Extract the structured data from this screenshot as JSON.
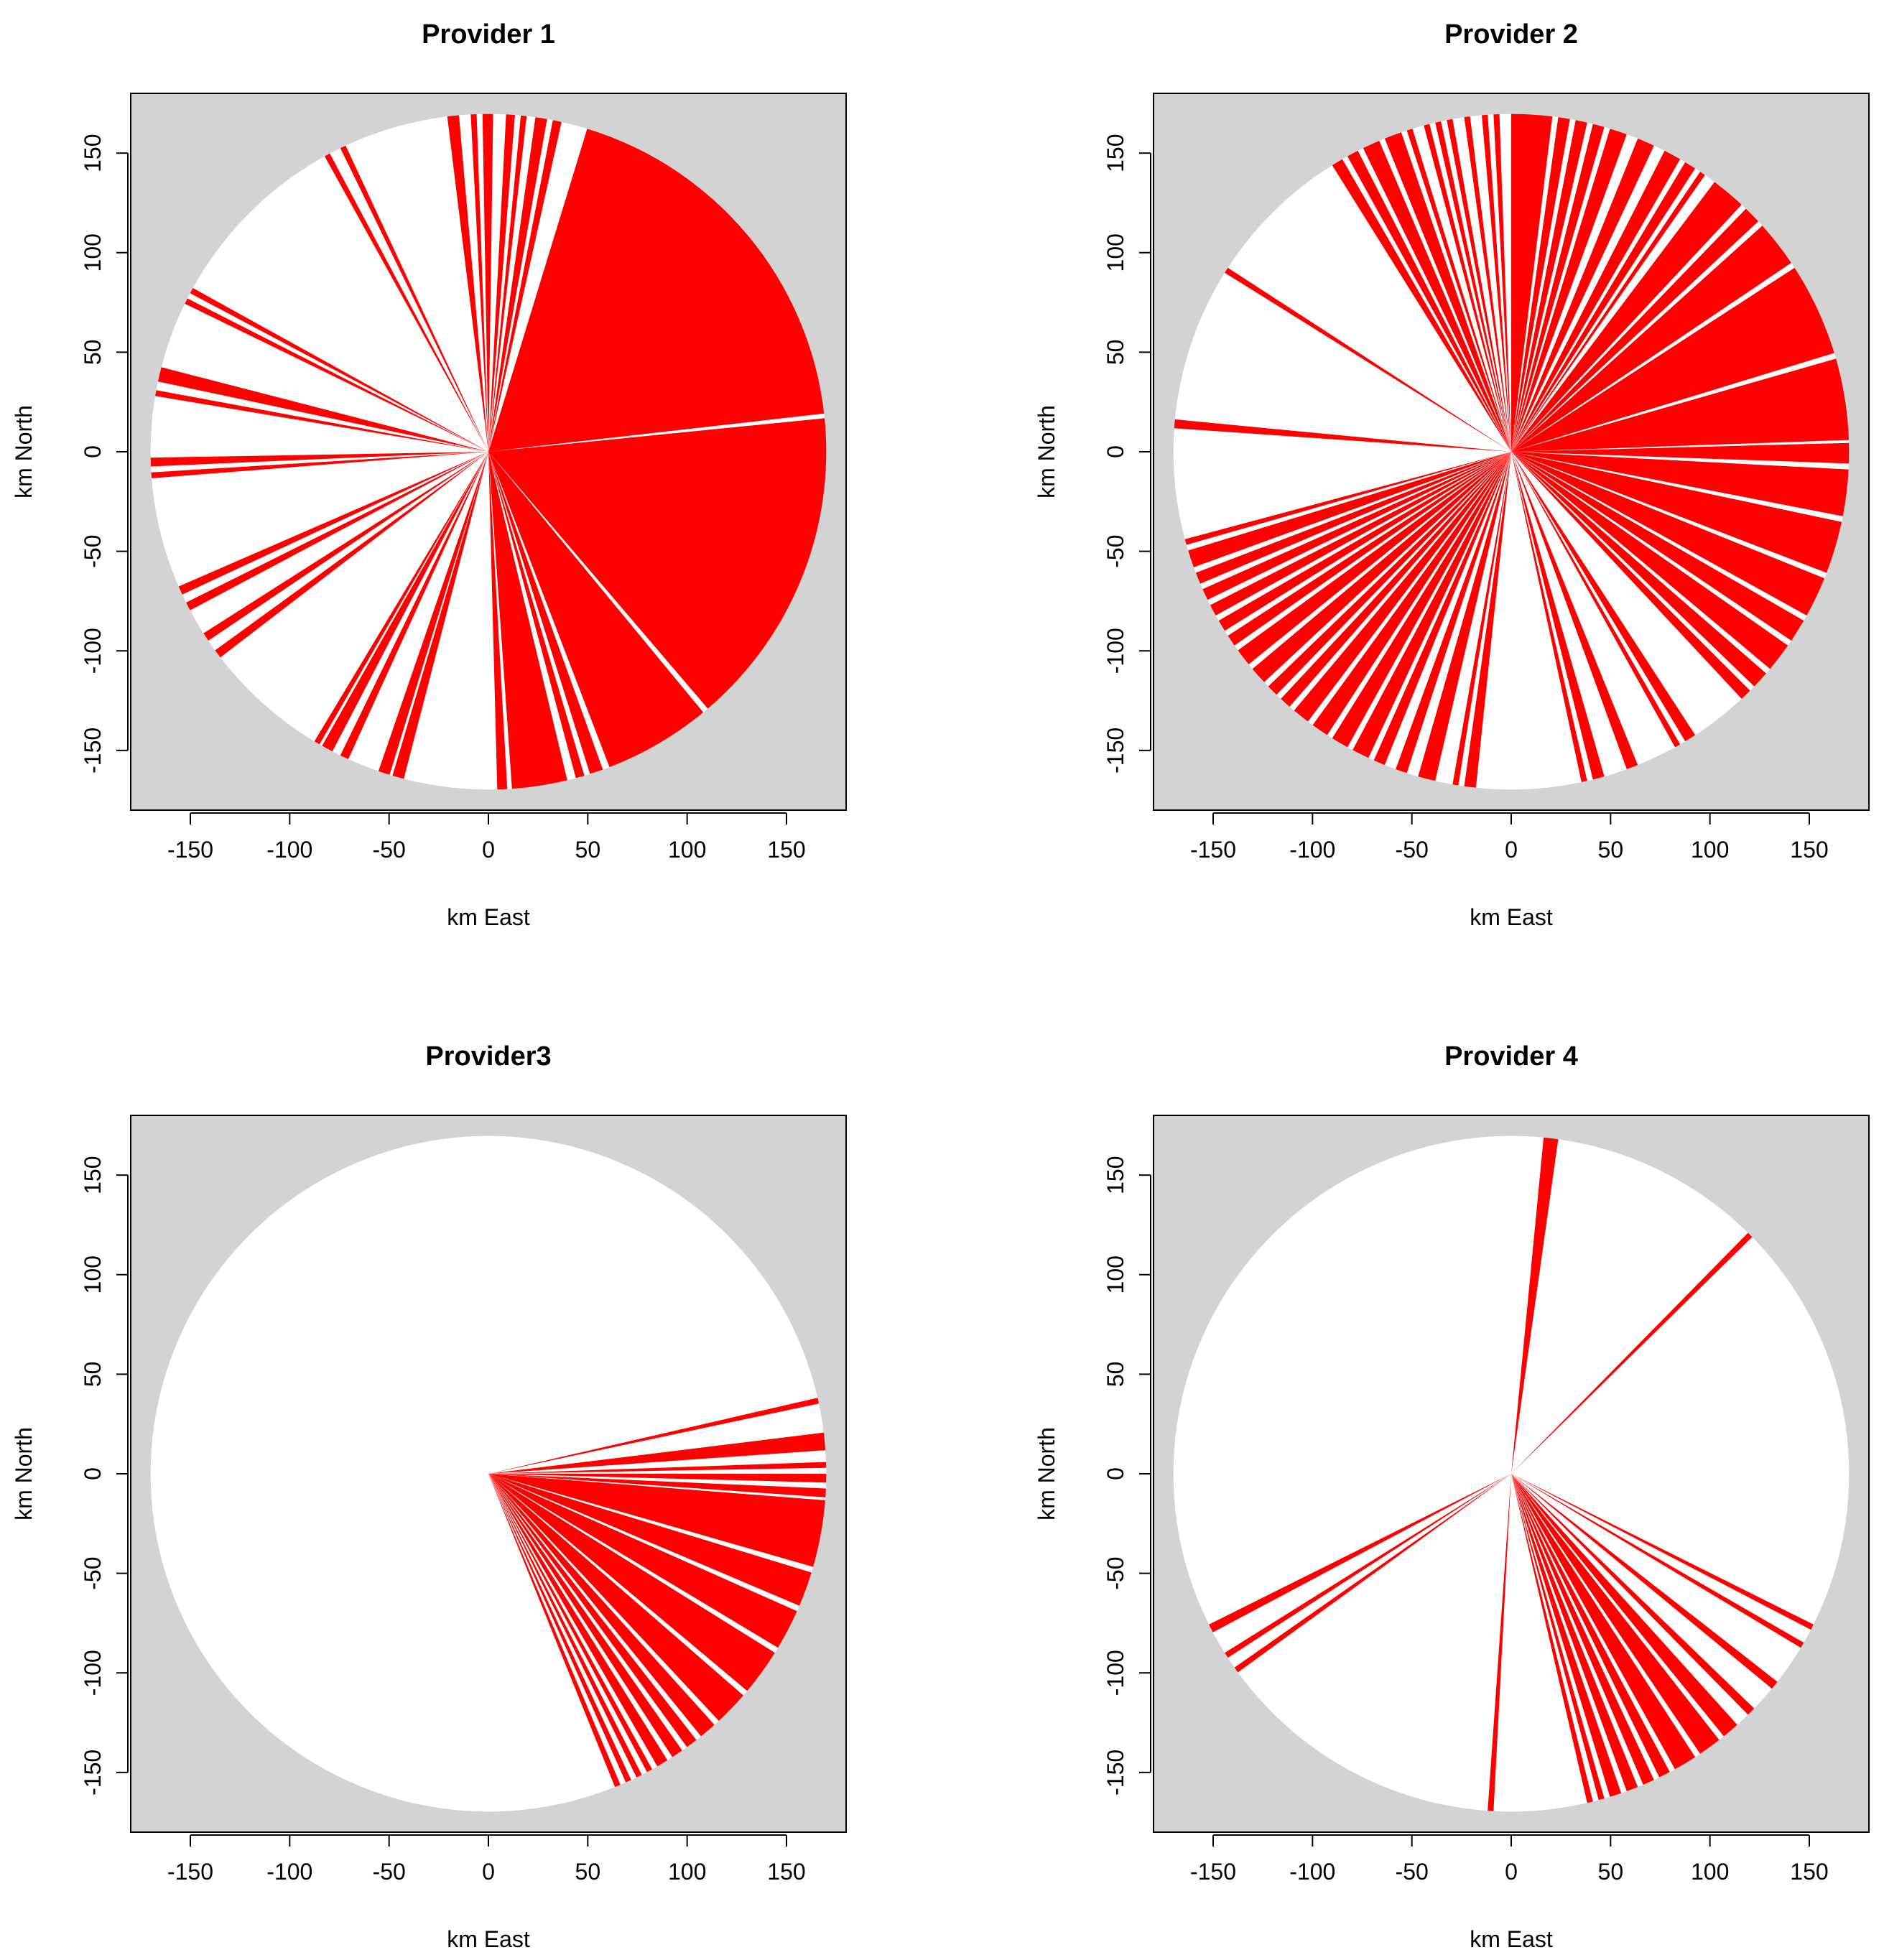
{
  "colors": {
    "background": "#d3d3d3",
    "disk": "#ffffff",
    "wedge": "#ff0000",
    "ink": "#000000"
  },
  "chart_data": [
    {
      "type": "polar-wedges",
      "title": "Provider 1",
      "xlabel": "km East",
      "ylabel": "km North",
      "xlim": [
        -180,
        180
      ],
      "ylim": [
        -180,
        180
      ],
      "radius_km": 170,
      "xticks": [
        -150,
        -100,
        -50,
        0,
        50,
        100,
        150
      ],
      "yticks": [
        -150,
        -100,
        -50,
        0,
        50,
        100,
        150
      ],
      "xtick_labels": [
        "-150",
        "-100",
        "-50",
        "0",
        "50",
        "100",
        "150"
      ],
      "ytick_labels": [
        "-150",
        "-100",
        "-50",
        "0",
        "50",
        "100",
        "150"
      ],
      "wedges_bearing_deg": [
        [
          17,
          83.5
        ],
        [
          84.3,
          139.5
        ],
        [
          140.5,
          159
        ],
        [
          160.2,
          162.5
        ],
        [
          163.5,
          165
        ],
        [
          166.5,
          176
        ],
        [
          176.8,
          178.5
        ],
        [
          194.5,
          196.5
        ],
        [
          197,
          199
        ],
        [
          204.5,
          206
        ],
        [
          207.5,
          209.5
        ],
        [
          210,
          211
        ],
        [
          232.5,
          234
        ],
        [
          236,
          237.5
        ],
        [
          242,
          243.5
        ],
        [
          245,
          246.5
        ],
        [
          265.5,
          266.5
        ],
        [
          267.5,
          269
        ],
        [
          279.5,
          280.5
        ],
        [
          282,
          284.5
        ],
        [
          296,
          297
        ],
        [
          298,
          299
        ],
        [
          331,
          332
        ],
        [
          334,
          335
        ],
        [
          353,
          355
        ],
        [
          357,
          358
        ],
        [
          359,
          360.8
        ],
        [
          3,
          4.5
        ],
        [
          5.5,
          6.5
        ],
        [
          8,
          10
        ],
        [
          11,
          12.5
        ]
      ]
    },
    {
      "type": "polar-wedges",
      "title": "Provider 2",
      "xlabel": "km East",
      "ylabel": "km North",
      "xlim": [
        -180,
        180
      ],
      "ylim": [
        -180,
        180
      ],
      "radius_km": 170,
      "xticks": [
        -150,
        -100,
        -50,
        0,
        50,
        100,
        150
      ],
      "yticks": [
        -150,
        -100,
        -50,
        0,
        50,
        100,
        150
      ],
      "xtick_labels": [
        "-150",
        "-100",
        "-50",
        "0",
        "50",
        "100",
        "150"
      ],
      "ytick_labels": [
        "-150",
        "-100",
        "-50",
        "0",
        "50",
        "100",
        "150"
      ],
      "wedges_bearing_deg": [
        [
          0,
          7
        ],
        [
          8,
          10
        ],
        [
          11,
          13
        ],
        [
          14,
          16
        ],
        [
          17,
          20
        ],
        [
          22,
          25
        ],
        [
          27,
          30
        ],
        [
          31,
          33
        ],
        [
          34,
          35
        ],
        [
          37,
          43
        ],
        [
          44,
          47
        ],
        [
          48,
          56
        ],
        [
          57,
          73
        ],
        [
          74,
          88
        ],
        [
          88.5,
          92
        ],
        [
          93,
          101
        ],
        [
          102,
          111
        ],
        [
          112,
          119
        ],
        [
          120,
          124
        ],
        [
          125,
          130
        ],
        [
          131,
          134
        ],
        [
          135,
          137
        ],
        [
          147,
          149
        ],
        [
          150,
          151
        ],
        [
          158,
          160
        ],
        [
          164,
          166
        ],
        [
          167,
          168
        ],
        [
          186,
          188
        ],
        [
          189,
          190
        ],
        [
          193,
          196
        ],
        [
          198,
          200
        ],
        [
          202,
          204
        ],
        [
          205,
          208
        ],
        [
          209,
          212
        ],
        [
          213,
          216
        ],
        [
          217,
          220
        ],
        [
          221,
          223
        ],
        [
          224,
          226
        ],
        [
          227,
          230
        ],
        [
          231,
          234
        ],
        [
          235,
          237
        ],
        [
          238,
          240
        ],
        [
          241,
          243
        ],
        [
          244,
          246
        ],
        [
          247,
          249
        ],
        [
          250,
          253
        ],
        [
          254,
          255
        ],
        [
          274,
          275.5
        ],
        [
          302,
          303
        ],
        [
          328,
          330
        ],
        [
          331,
          333
        ],
        [
          334,
          337
        ],
        [
          338,
          341
        ],
        [
          342,
          343
        ],
        [
          345,
          346
        ],
        [
          347,
          348
        ],
        [
          349,
          350
        ],
        [
          352,
          353
        ],
        [
          355,
          356
        ],
        [
          357,
          358
        ]
      ]
    },
    {
      "type": "polar-wedges",
      "title": "Provider3",
      "xlabel": "km East",
      "ylabel": "km North",
      "xlim": [
        -180,
        180
      ],
      "ylim": [
        -180,
        180
      ],
      "radius_km": 170,
      "xticks": [
        -150,
        -100,
        -50,
        0,
        50,
        100,
        150
      ],
      "yticks": [
        -150,
        -100,
        -50,
        0,
        50,
        100,
        150
      ],
      "xtick_labels": [
        "-150",
        "-100",
        "-50",
        "0",
        "50",
        "100",
        "150"
      ],
      "ytick_labels": [
        "-150",
        "-100",
        "-50",
        "0",
        "50",
        "100",
        "150"
      ],
      "wedges_bearing_deg": [
        [
          77,
          78
        ],
        [
          83,
          86
        ],
        [
          88,
          89
        ],
        [
          90,
          91.5
        ],
        [
          92.5,
          94
        ],
        [
          94.5,
          106
        ],
        [
          107,
          113
        ],
        [
          114,
          121
        ],
        [
          122,
          130
        ],
        [
          131,
          137
        ],
        [
          138,
          141
        ],
        [
          142,
          144
        ],
        [
          145,
          147
        ],
        [
          148,
          150
        ],
        [
          151,
          152
        ],
        [
          153,
          154
        ],
        [
          155,
          156
        ],
        [
          157,
          158
        ]
      ]
    },
    {
      "type": "polar-wedges",
      "title": "Provider 4",
      "xlabel": "km East",
      "ylabel": "km North",
      "xlim": [
        -180,
        180
      ],
      "ylim": [
        -180,
        180
      ],
      "radius_km": 170,
      "xticks": [
        -150,
        -100,
        -50,
        0,
        50,
        100,
        150
      ],
      "yticks": [
        -150,
        -100,
        -50,
        0,
        50,
        100,
        150
      ],
      "xtick_labels": [
        "-150",
        "-100",
        "-50",
        "0",
        "50",
        "100",
        "150"
      ],
      "ytick_labels": [
        "-150",
        "-100",
        "-50",
        "0",
        "50",
        "100",
        "150"
      ],
      "wedges_bearing_deg": [
        [
          5.5,
          8
        ],
        [
          44.5,
          45.5
        ],
        [
          116.5,
          117.5
        ],
        [
          120,
          121
        ],
        [
          128,
          129.5
        ],
        [
          134,
          135.5
        ],
        [
          138,
          141
        ],
        [
          142,
          146
        ],
        [
          147,
          151
        ],
        [
          152,
          154
        ],
        [
          155,
          157
        ],
        [
          158,
          160
        ],
        [
          161,
          163
        ],
        [
          164,
          165
        ],
        [
          166,
          167
        ],
        [
          183,
          184
        ],
        [
          234,
          235
        ],
        [
          237,
          238
        ],
        [
          242,
          243.5
        ]
      ]
    }
  ]
}
